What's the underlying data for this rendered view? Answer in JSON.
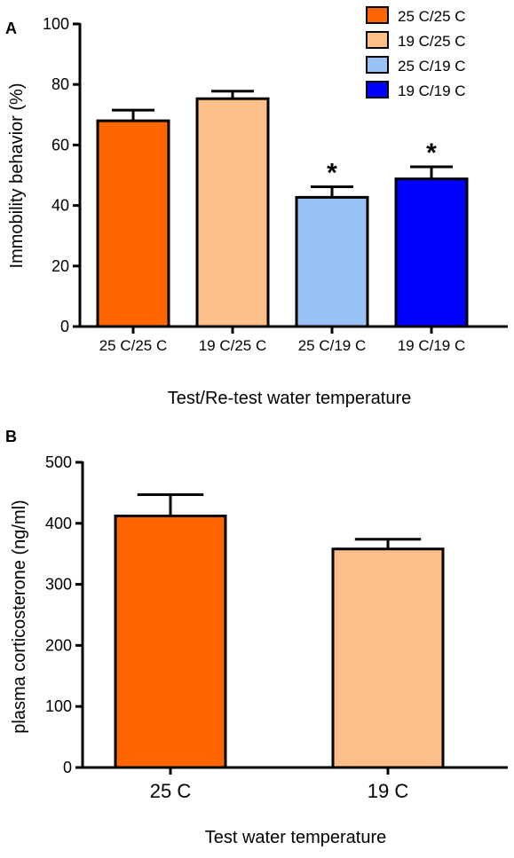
{
  "chart_data": [
    {
      "panel": "A",
      "type": "bar",
      "categories": [
        "25 C/25 C",
        "19 C/25 C",
        "25 C/19 C",
        "19 C/19 C"
      ],
      "values": [
        68,
        75.3,
        42.7,
        48.8
      ],
      "errors": [
        3.5,
        2.5,
        3.5,
        4.0
      ],
      "significance": [
        "",
        "",
        "*",
        "*"
      ],
      "colors": [
        "#FF6600",
        "#FDBE87",
        "#99C2F7",
        "#0000FF"
      ],
      "xlabel": "Test/Re-test water temperature",
      "ylabel": "Immobility behavior (%)",
      "ylim": [
        0,
        100
      ],
      "yticks": [
        0,
        20,
        40,
        60,
        80,
        100
      ],
      "legend": {
        "position": "top-right",
        "entries": [
          "25 C/25 C",
          "19 C/25 C",
          "25 C/19 C",
          "19 C/19 C"
        ]
      }
    },
    {
      "panel": "B",
      "type": "bar",
      "categories": [
        "25 C",
        "19 C"
      ],
      "values": [
        412,
        358
      ],
      "errors": [
        35,
        16
      ],
      "colors": [
        "#FF6600",
        "#FDBE87"
      ],
      "xlabel": "Test water temperature",
      "ylabel": "plasma corticosterone (ng/ml)",
      "ylim": [
        0,
        500
      ],
      "yticks": [
        0,
        100,
        200,
        300,
        400,
        500
      ]
    }
  ]
}
